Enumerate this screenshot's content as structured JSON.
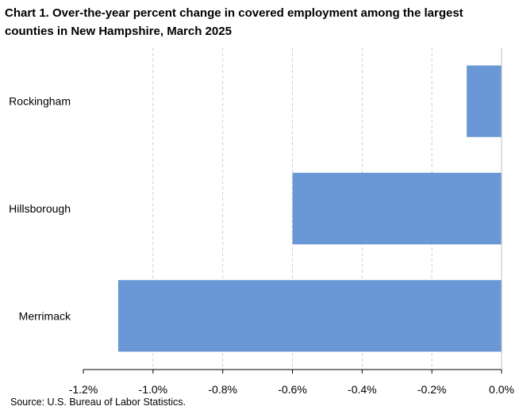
{
  "title": "Chart 1. Over-the-year percent change in covered employment among the largest counties in New Hampshire,  March 2025",
  "source": "Source: U.S. Bureau of Labor Statistics.",
  "chart_data": {
    "type": "bar",
    "orientation": "horizontal",
    "title": "Chart 1. Over-the-year percent change in covered employment among the largest counties in New Hampshire,  March 2025",
    "categories": [
      "Rockingham",
      "Hillsborough",
      "Merrimack"
    ],
    "values": [
      -0.1,
      -0.6,
      -1.1
    ],
    "xlabel": "",
    "ylabel": "",
    "xlim": [
      -1.2,
      0.0
    ],
    "x_ticks": [
      -1.2,
      -1.0,
      -0.8,
      -0.6,
      -0.4,
      -0.2,
      0.0
    ],
    "x_tick_labels": [
      "-1.2%",
      "-1.0%",
      "-0.8%",
      "-0.6%",
      "-0.4%",
      "-0.2%",
      "0.0%"
    ],
    "grid": "vertical dashed",
    "legend": "none",
    "bar_color": "#6a98d6"
  }
}
